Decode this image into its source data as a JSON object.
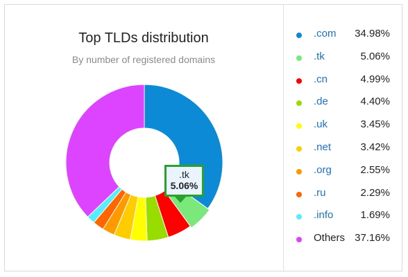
{
  "chart_data": {
    "type": "pie",
    "title": "Top TLDs distribution",
    "subtitle": "By number of registered domains",
    "legend_position": "right",
    "slices": [
      {
        "label": ".com",
        "value": 34.98,
        "display": "34.98%",
        "color": "#0d8ad6"
      },
      {
        "label": ".tk",
        "value": 5.06,
        "display": "5.06%",
        "color": "#7be87b"
      },
      {
        "label": ".cn",
        "value": 4.99,
        "display": "4.99%",
        "color": "#ff0000"
      },
      {
        "label": ".de",
        "value": 4.4,
        "display": "4.40%",
        "color": "#99dd00"
      },
      {
        "label": ".uk",
        "value": 3.45,
        "display": "3.45%",
        "color": "#ffff00"
      },
      {
        "label": ".net",
        "value": 3.42,
        "display": "3.42%",
        "color": "#ffcc00"
      },
      {
        "label": ".org",
        "value": 2.55,
        "display": "2.55%",
        "color": "#ff9900"
      },
      {
        "label": ".ru",
        "value": 2.29,
        "display": "2.29%",
        "color": "#ff6600"
      },
      {
        "label": ".info",
        "value": 1.69,
        "display": "1.69%",
        "color": "#55eeff"
      },
      {
        "label": "Others",
        "value": 37.16,
        "display": "37.16%",
        "color": "#dd44ff"
      }
    ],
    "highlighted_index": 1,
    "tooltip": {
      "name": ".tk",
      "value": "5.06%"
    }
  }
}
